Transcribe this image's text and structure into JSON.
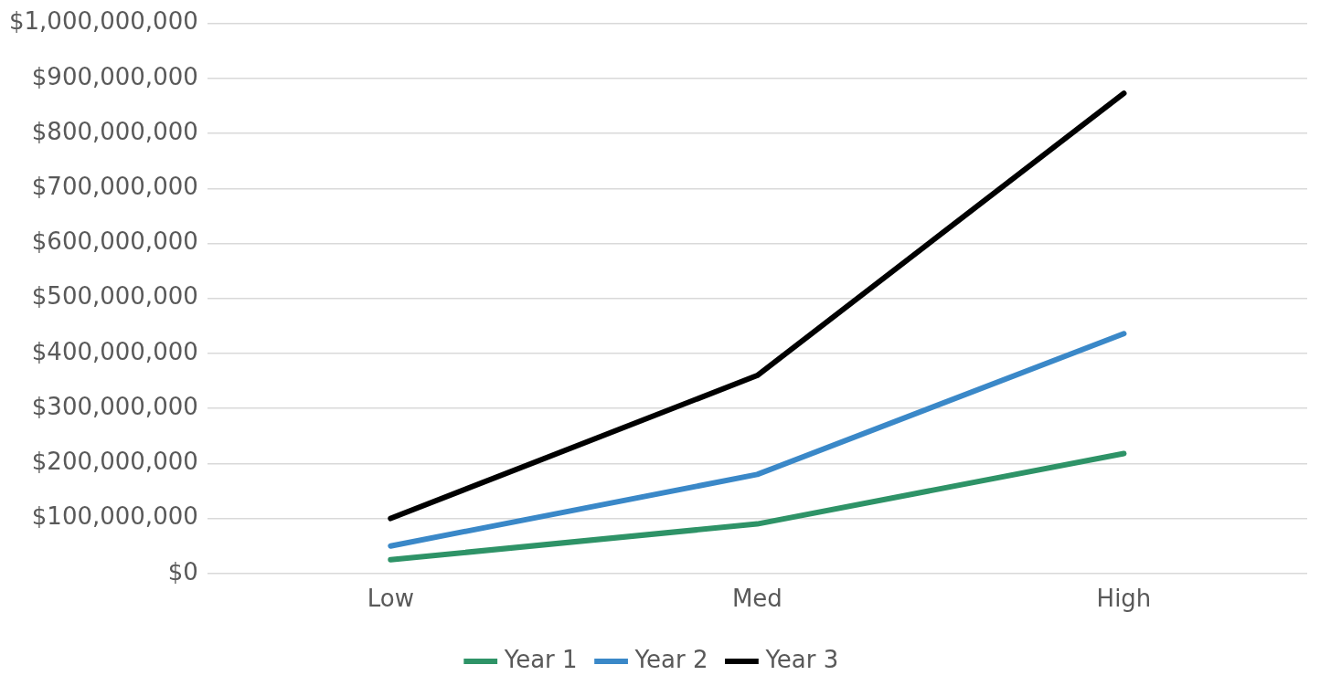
{
  "chart_data": {
    "type": "line",
    "categories": [
      "Low",
      "Med",
      "High"
    ],
    "series": [
      {
        "name": "Year 1",
        "color": "#2e9367",
        "values": [
          25000000,
          90000000,
          218000000
        ]
      },
      {
        "name": "Year 2",
        "color": "#3a88c8",
        "values": [
          50000000,
          180000000,
          436000000
        ]
      },
      {
        "name": "Year 3",
        "color": "#000000",
        "values": [
          100000000,
          360000000,
          873000000
        ]
      }
    ],
    "ylim": [
      0,
      1000000000
    ],
    "yticks": [
      {
        "value": 0,
        "label": "$0"
      },
      {
        "value": 100000000,
        "label": "$100,000,000"
      },
      {
        "value": 200000000,
        "label": "$200,000,000"
      },
      {
        "value": 300000000,
        "label": "$300,000,000"
      },
      {
        "value": 400000000,
        "label": "$400,000,000"
      },
      {
        "value": 500000000,
        "label": "$500,000,000"
      },
      {
        "value": 600000000,
        "label": "$600,000,000"
      },
      {
        "value": 700000000,
        "label": "$700,000,000"
      },
      {
        "value": 800000000,
        "label": "$800,000,000"
      },
      {
        "value": 900000000,
        "label": "$900,000,000"
      },
      {
        "value": 1000000000,
        "label": "$1,000,000,000"
      }
    ],
    "grid": "y",
    "legend": "bottom",
    "marker": "none",
    "line_style": "solid"
  }
}
